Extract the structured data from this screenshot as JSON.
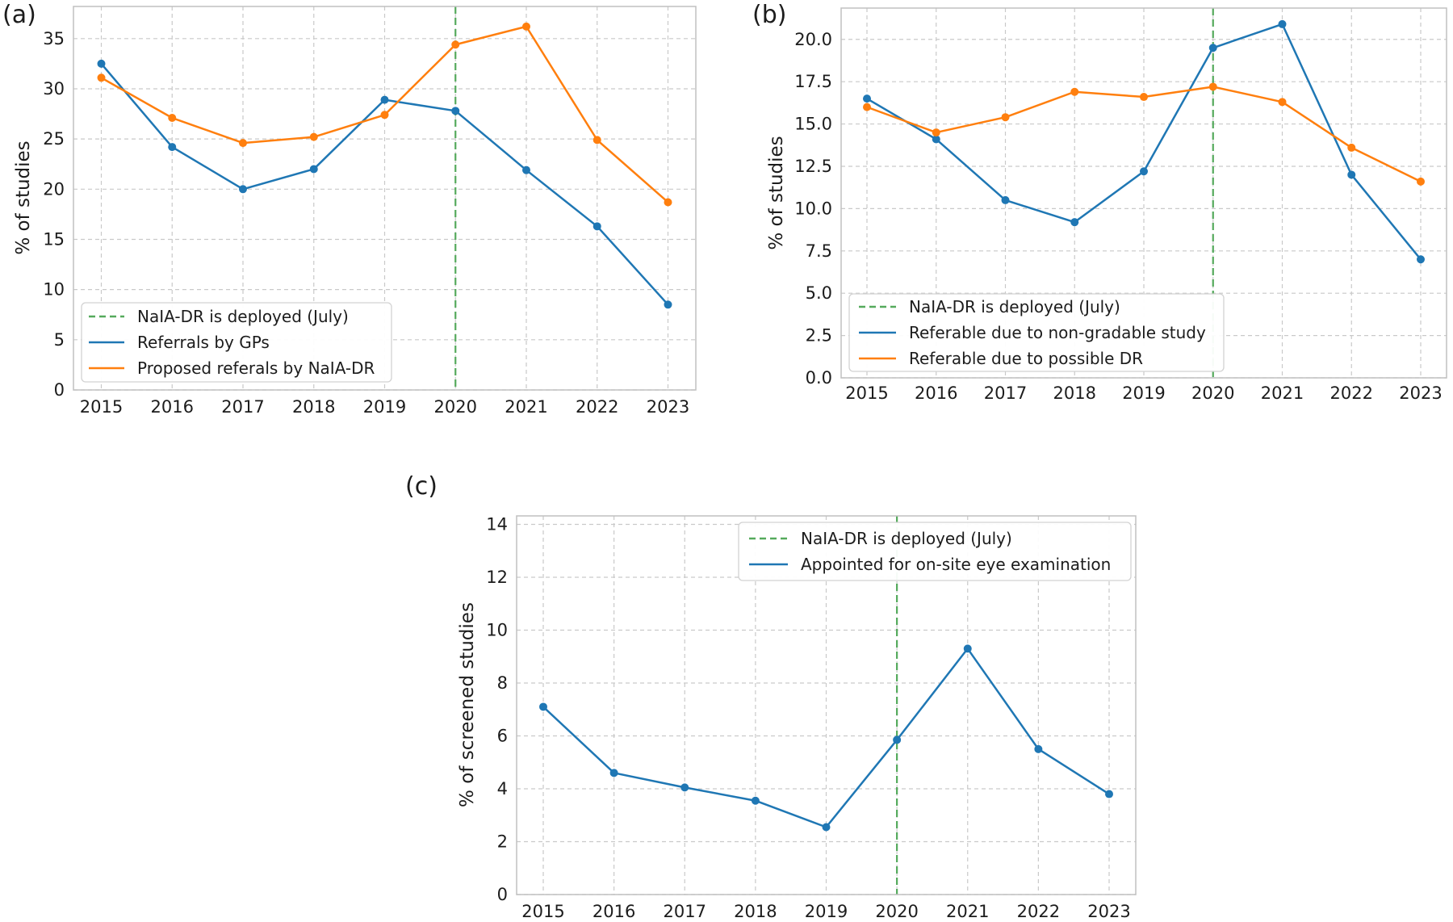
{
  "figure": {
    "background": "#ffffff",
    "text_color": "#1c1c1c",
    "grid_color": "#c9c9c9",
    "frame_color": "#c0c0c0",
    "legend_border_color": "#d2d2d2",
    "accent_blue": "#1f77b4",
    "accent_orange": "#ff7f0e",
    "accent_green": "#55aa5c"
  },
  "chart_data": [
    {
      "type": "line",
      "panel_label": "(a)",
      "title": "",
      "xlabel": "",
      "ylabel": "% of studies",
      "x": [
        2015,
        2016,
        2017,
        2018,
        2019,
        2020,
        2021,
        2022,
        2023
      ],
      "yticks": [
        0,
        5,
        10,
        15,
        20,
        25,
        30,
        35
      ],
      "ytick_format": "int",
      "ylim": [
        0,
        38.2
      ],
      "grid": "dashed",
      "legend_position": "lower left",
      "vline": {
        "x": 2020,
        "label": "NaIA-DR is deployed (July)",
        "color": "#55aa5c",
        "style": "dashed"
      },
      "series": [
        {
          "name": "Referrals by GPs",
          "color": "#1f77b4",
          "marker": "circle",
          "values": [
            32.5,
            24.2,
            20.0,
            22.0,
            28.9,
            27.8,
            21.9,
            16.3,
            8.5
          ]
        },
        {
          "name": "Proposed referals by NaIA-DR",
          "color": "#ff7f0e",
          "marker": "circle",
          "values": [
            31.1,
            27.1,
            24.6,
            25.2,
            27.4,
            34.4,
            36.2,
            24.9,
            18.7
          ]
        }
      ]
    },
    {
      "type": "line",
      "panel_label": "(b)",
      "title": "",
      "xlabel": "",
      "ylabel": "% of studies",
      "x": [
        2015,
        2016,
        2017,
        2018,
        2019,
        2020,
        2021,
        2022,
        2023
      ],
      "yticks": [
        0,
        2.5,
        5,
        7.5,
        10,
        12.5,
        15,
        17.5,
        20
      ],
      "ytick_format": "1dp",
      "ylim": [
        0,
        21.85
      ],
      "grid": "dashed",
      "legend_position": "lower left",
      "vline": {
        "x": 2020,
        "label": "NaIA-DR is deployed (July)",
        "color": "#55aa5c",
        "style": "dashed"
      },
      "series": [
        {
          "name": "Referable due to non-gradable study",
          "color": "#1f77b4",
          "marker": "circle",
          "values": [
            16.5,
            14.1,
            10.5,
            9.2,
            12.2,
            19.5,
            20.9,
            12.0,
            7.0
          ]
        },
        {
          "name": "Referable due to possible DR",
          "color": "#ff7f0e",
          "marker": "circle",
          "values": [
            16.0,
            14.5,
            15.4,
            16.9,
            16.6,
            17.2,
            16.3,
            13.6,
            11.6
          ]
        }
      ]
    },
    {
      "type": "line",
      "panel_label": "(c)",
      "title": "",
      "xlabel": "",
      "ylabel": "% of screened studies",
      "x": [
        2015,
        2016,
        2017,
        2018,
        2019,
        2020,
        2021,
        2022,
        2023
      ],
      "yticks": [
        0,
        2,
        4,
        6,
        8,
        10,
        12,
        14
      ],
      "ytick_format": "int",
      "ylim": [
        0,
        14.32
      ],
      "grid": "dashed",
      "legend_position": "upper right",
      "vline": {
        "x": 2020,
        "label": "NaIA-DR is deployed (July)",
        "color": "#55aa5c",
        "style": "dashed"
      },
      "series": [
        {
          "name": "Appointed for on-site eye examination",
          "color": "#1f77b4",
          "marker": "circle",
          "values": [
            7.1,
            4.6,
            4.05,
            3.55,
            2.55,
            5.85,
            9.3,
            5.5,
            3.8
          ]
        }
      ]
    }
  ]
}
